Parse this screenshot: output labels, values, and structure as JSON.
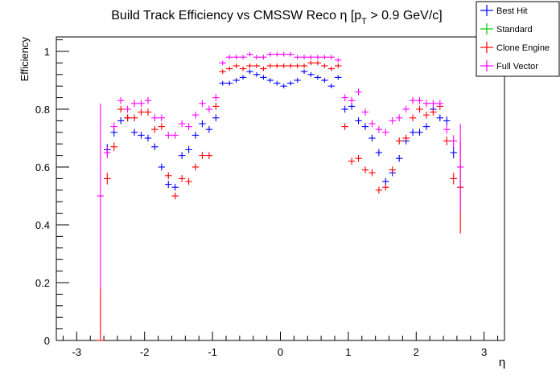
{
  "chart_data": {
    "type": "scatter",
    "title": "Build Track Efficiency vs CMSSW Reco η [p",
    "title_sub": "T",
    "title_tail": " > 0.9 GeV/c]",
    "xlabel": "η",
    "ylabel": "Efficiency",
    "xlim": [
      -3.3,
      3.3
    ],
    "ylim": [
      0,
      1.05
    ],
    "grid": false,
    "legend_position": "top-right",
    "x_ticks": [
      -3,
      -2,
      -1,
      0,
      1,
      2,
      3
    ],
    "x_tick_labels": [
      "-3",
      "-2",
      "-1",
      "0",
      "1",
      "2",
      "3"
    ],
    "y_ticks": [
      0,
      0.2,
      0.4,
      0.6,
      0.8,
      1
    ],
    "y_tick_labels": [
      "0",
      "0.2",
      "0.4",
      "0.6",
      "0.8",
      "1"
    ],
    "x": [
      -2.65,
      -2.55,
      -2.45,
      -2.35,
      -2.25,
      -2.15,
      -2.05,
      -1.95,
      -1.85,
      -1.75,
      -1.65,
      -1.55,
      -1.45,
      -1.35,
      -1.25,
      -1.15,
      -1.05,
      -0.95,
      -0.85,
      -0.75,
      -0.65,
      -0.55,
      -0.45,
      -0.35,
      -0.25,
      -0.15,
      -0.05,
      0.05,
      0.15,
      0.25,
      0.35,
      0.45,
      0.55,
      0.65,
      0.75,
      0.85,
      0.95,
      1.05,
      1.15,
      1.25,
      1.35,
      1.45,
      1.55,
      1.65,
      1.75,
      1.85,
      1.95,
      2.05,
      2.15,
      2.25,
      2.35,
      2.45,
      2.55,
      2.65
    ],
    "series": [
      {
        "name": "Best Hit",
        "color": "#0000ff",
        "values": [
          null,
          0.66,
          0.72,
          0.76,
          0.77,
          0.72,
          0.71,
          0.7,
          0.67,
          0.6,
          0.54,
          0.53,
          0.64,
          0.66,
          0.71,
          0.75,
          0.73,
          0.77,
          0.89,
          0.89,
          0.9,
          0.91,
          0.93,
          0.92,
          0.91,
          0.9,
          0.89,
          0.88,
          0.89,
          0.9,
          0.93,
          0.92,
          0.91,
          0.9,
          0.88,
          0.91,
          0.8,
          0.81,
          0.76,
          0.74,
          0.7,
          0.65,
          0.55,
          0.58,
          0.63,
          0.69,
          0.72,
          0.72,
          0.74,
          0.8,
          0.77,
          0.76,
          0.65,
          null
        ],
        "err": [
          0,
          0.02,
          0.015,
          0.012,
          0.012,
          0.012,
          0.012,
          0.012,
          0.012,
          0.012,
          0.012,
          0.012,
          0.012,
          0.012,
          0.012,
          0.012,
          0.012,
          0.012,
          0.008,
          0.008,
          0.008,
          0.008,
          0.008,
          0.008,
          0.008,
          0.008,
          0.008,
          0.008,
          0.008,
          0.008,
          0.008,
          0.008,
          0.008,
          0.008,
          0.008,
          0.008,
          0.012,
          0.012,
          0.012,
          0.012,
          0.012,
          0.012,
          0.012,
          0.012,
          0.012,
          0.012,
          0.012,
          0.012,
          0.012,
          0.012,
          0.012,
          0.015,
          0.02,
          0
        ]
      },
      {
        "name": "Standard",
        "color": "#00cc00",
        "values": [],
        "err": []
      },
      {
        "name": "Clone Engine",
        "color": "#ff0000",
        "values": [
          0.0,
          0.56,
          0.67,
          0.8,
          0.77,
          0.77,
          0.79,
          0.79,
          0.73,
          0.74,
          0.57,
          0.5,
          0.56,
          0.55,
          0.6,
          0.64,
          0.64,
          0.81,
          0.93,
          0.94,
          0.95,
          0.94,
          0.95,
          0.95,
          0.94,
          0.95,
          0.95,
          0.95,
          0.95,
          0.95,
          0.95,
          0.96,
          0.96,
          0.95,
          0.94,
          0.95,
          0.74,
          0.62,
          0.63,
          0.59,
          0.58,
          0.52,
          0.53,
          0.59,
          0.69,
          0.7,
          0.77,
          0.8,
          0.78,
          0.79,
          0.81,
          0.69,
          0.56,
          0.53
        ],
        "err": [
          0.18,
          0.02,
          0.015,
          0.012,
          0.012,
          0.012,
          0.012,
          0.012,
          0.012,
          0.012,
          0.012,
          0.012,
          0.012,
          0.012,
          0.012,
          0.012,
          0.012,
          0.012,
          0.008,
          0.008,
          0.008,
          0.008,
          0.008,
          0.008,
          0.008,
          0.008,
          0.008,
          0.008,
          0.008,
          0.008,
          0.008,
          0.008,
          0.008,
          0.008,
          0.008,
          0.008,
          0.012,
          0.012,
          0.012,
          0.012,
          0.012,
          0.012,
          0.012,
          0.012,
          0.012,
          0.012,
          0.012,
          0.012,
          0.012,
          0.012,
          0.012,
          0.015,
          0.02,
          0.16
        ]
      },
      {
        "name": "Full Vector",
        "color": "#ff00ff",
        "values": [
          0.5,
          0.65,
          0.74,
          0.83,
          0.8,
          0.82,
          0.82,
          0.83,
          0.77,
          0.77,
          0.71,
          0.71,
          0.75,
          0.74,
          0.78,
          0.82,
          0.8,
          0.84,
          0.96,
          0.98,
          0.98,
          0.98,
          0.99,
          0.98,
          0.98,
          0.99,
          0.99,
          0.99,
          0.99,
          0.98,
          0.98,
          0.98,
          0.98,
          0.98,
          0.98,
          0.97,
          0.84,
          0.83,
          0.86,
          0.79,
          0.75,
          0.73,
          0.72,
          0.76,
          0.77,
          0.8,
          0.83,
          0.83,
          0.82,
          0.82,
          0.82,
          0.73,
          0.69,
          0.6
        ],
        "err": [
          0.32,
          0.02,
          0.015,
          0.012,
          0.012,
          0.012,
          0.012,
          0.012,
          0.012,
          0.012,
          0.012,
          0.012,
          0.012,
          0.012,
          0.012,
          0.012,
          0.012,
          0.012,
          0.008,
          0.008,
          0.008,
          0.008,
          0.008,
          0.008,
          0.008,
          0.008,
          0.008,
          0.008,
          0.008,
          0.008,
          0.008,
          0.008,
          0.008,
          0.008,
          0.008,
          0.008,
          0.012,
          0.012,
          0.012,
          0.012,
          0.012,
          0.012,
          0.012,
          0.012,
          0.012,
          0.012,
          0.012,
          0.012,
          0.012,
          0.012,
          0.012,
          0.015,
          0.02,
          0.15
        ]
      }
    ]
  }
}
